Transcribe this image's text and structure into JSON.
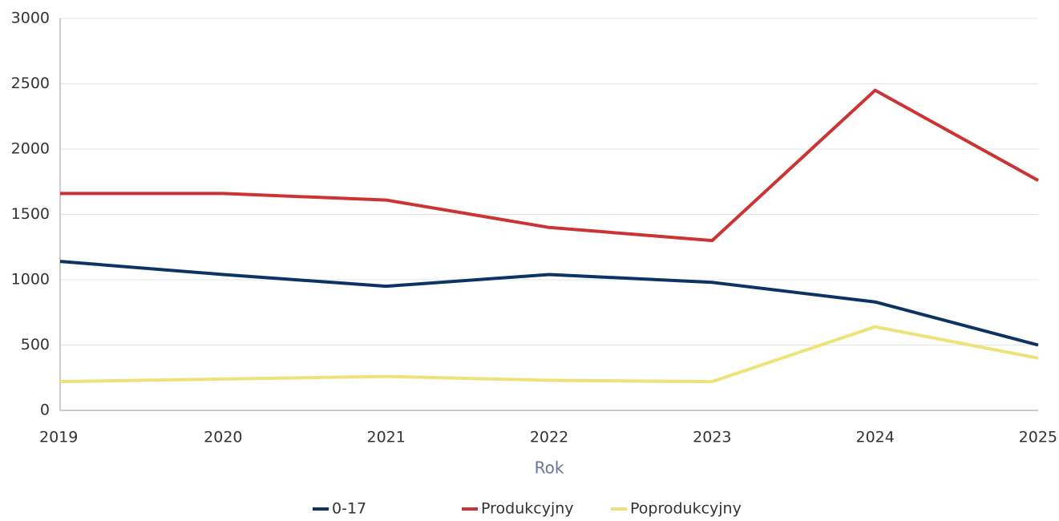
{
  "chart_data": {
    "type": "line",
    "x": [
      2019,
      2020,
      2021,
      2022,
      2023,
      2024,
      2025
    ],
    "xlabel": "Rok",
    "series": [
      {
        "name": "0-17",
        "color": "#0d3362",
        "values": [
          1140,
          1040,
          950,
          1040,
          980,
          830,
          500
        ]
      },
      {
        "name": "Produkcyjny",
        "color": "#cc3333",
        "values": [
          1660,
          1660,
          1610,
          1400,
          1300,
          2450,
          1760
        ]
      },
      {
        "name": "Poprodukcyjny",
        "color": "#efe27a",
        "values": [
          220,
          240,
          260,
          230,
          220,
          640,
          400
        ]
      }
    ],
    "xlim": [
      2019,
      2025
    ],
    "xticks": [
      2019,
      2020,
      2021,
      2022,
      2023,
      2024,
      2025
    ],
    "ylim": [
      0,
      3000
    ],
    "yticks": [
      0,
      500,
      1000,
      1500,
      2000,
      2500,
      3000
    ],
    "grid": true,
    "legend": "bottom"
  }
}
